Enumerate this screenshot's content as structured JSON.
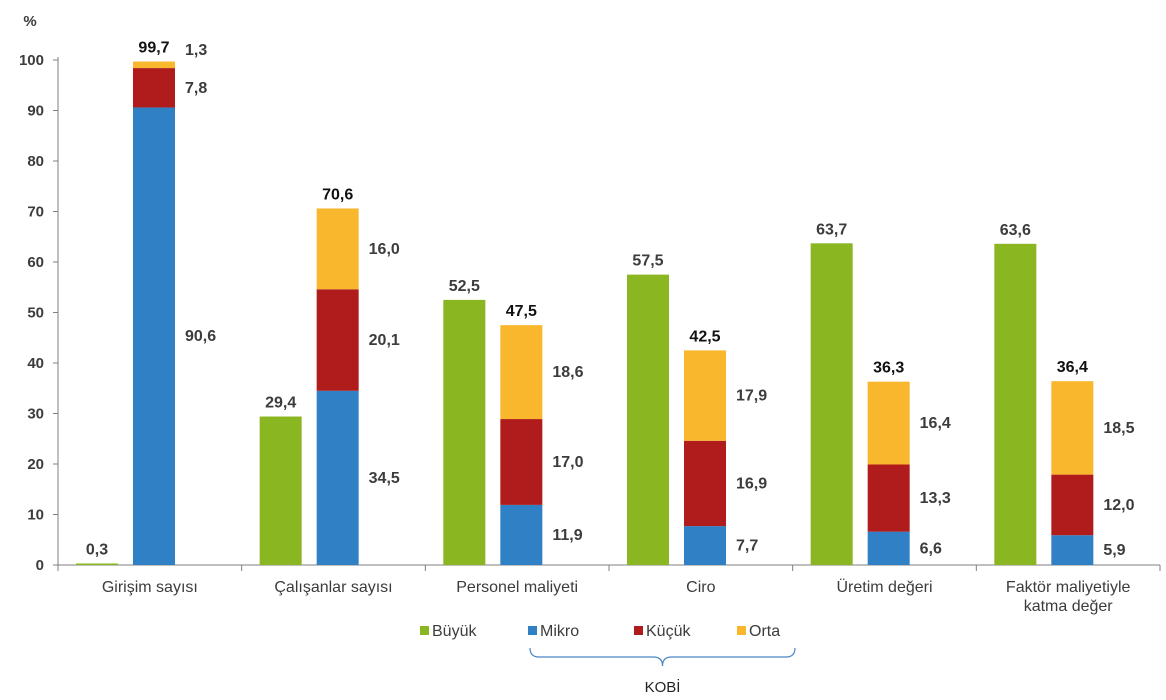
{
  "chart_data": {
    "type": "bar",
    "y_unit": "%",
    "ylim": [
      0,
      100
    ],
    "y_ticks": [
      0,
      10,
      20,
      30,
      40,
      50,
      60,
      70,
      80,
      90,
      100
    ],
    "grid": false,
    "legend_position": "bottom",
    "categories": [
      [
        "Girişim sayısı"
      ],
      [
        "Çalışanlar sayısı"
      ],
      [
        "Personel maliyeti"
      ],
      [
        "Ciro"
      ],
      [
        "Üretim değeri"
      ],
      [
        "Faktör maliyetiyle",
        "katma değer"
      ]
    ],
    "series": [
      {
        "name": "Büyük",
        "color": "#8ab621",
        "values": [
          0.3,
          29.4,
          52.5,
          57.5,
          63.7,
          63.6
        ],
        "labels": [
          "0,3",
          "29,4",
          "52,5",
          "57,5",
          "63,7",
          "63,6"
        ]
      },
      {
        "name": "Mikro",
        "color": "#2f80c4",
        "values": [
          90.6,
          34.5,
          11.9,
          7.7,
          6.6,
          5.9
        ],
        "labels": [
          "90,6",
          "34,5",
          "11,9",
          "7,7",
          "6,6",
          "5,9"
        ]
      },
      {
        "name": "Küçük",
        "color": "#b01c1c",
        "values": [
          7.8,
          20.1,
          17.0,
          16.9,
          13.3,
          12.0
        ],
        "labels": [
          "7,8",
          "20,1",
          "17,0",
          "16,9",
          "13,3",
          "12,0"
        ]
      },
      {
        "name": "Orta",
        "color": "#f9b72e",
        "values": [
          1.3,
          16.0,
          18.6,
          17.9,
          16.4,
          18.5
        ],
        "labels": [
          "1,3",
          "16,0",
          "18,6",
          "17,9",
          "16,4",
          "18,5"
        ]
      }
    ],
    "sme_totals": [
      99.7,
      70.6,
      47.5,
      42.5,
      36.3,
      36.4
    ],
    "sme_total_labels": [
      "99,7",
      "70,6",
      "47,5",
      "42,5",
      "36,3",
      "36,4"
    ],
    "sme_group_label": "KOBİ"
  }
}
